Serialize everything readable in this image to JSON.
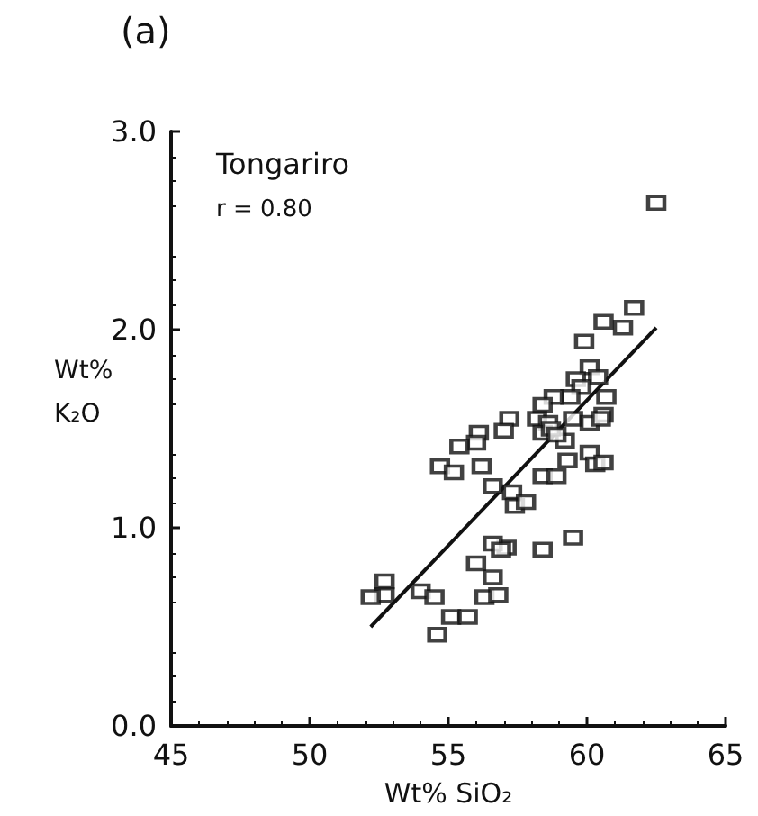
{
  "chart_data": {
    "type": "scatter",
    "title": "(a)",
    "xlabel": "Wt% SiO₂",
    "ylabel": "Wt%\nK₂O",
    "annotations": [
      "Tongariro",
      "r = 0.80"
    ],
    "xlim": [
      45,
      65
    ],
    "xticks": [
      45,
      50,
      55,
      60,
      65
    ],
    "ylim": [
      0,
      3
    ],
    "yticks": [
      {
        "value": 0,
        "label": "0.0"
      },
      {
        "value": 1,
        "label": "1.0"
      },
      {
        "value": 2,
        "label": "2.0"
      },
      {
        "value": 3,
        "label": "3.0"
      }
    ],
    "grid": false,
    "marker": "square",
    "series": [
      {
        "color": "#111111",
        "x": [
          62.5,
          61.7,
          60.6,
          61.3,
          59.9,
          60.1,
          60.4,
          59.6,
          59.8,
          59.4,
          60.7,
          58.8,
          58.4,
          57.2,
          57.0,
          58.2,
          58.6,
          58.4,
          59.2,
          59.5,
          60.1,
          60.6,
          60.5,
          56.1,
          56.0,
          55.4,
          54.7,
          55.2,
          56.2,
          59.3,
          60.1,
          60.3,
          60.6,
          58.4,
          58.9,
          56.6,
          57.3,
          57.4,
          57.8,
          59.5,
          58.4,
          57.1,
          56.6,
          56.9,
          56.0,
          56.6,
          52.7,
          52.7,
          52.2,
          54.0,
          54.5,
          56.3,
          56.8,
          55.1,
          55.7,
          54.6,
          58.7,
          58.9
        ],
        "values": [
          2.64,
          2.11,
          2.04,
          2.01,
          1.94,
          1.81,
          1.76,
          1.75,
          1.71,
          1.66,
          1.66,
          1.66,
          1.62,
          1.55,
          1.49,
          1.55,
          1.53,
          1.48,
          1.44,
          1.55,
          1.53,
          1.57,
          1.55,
          1.48,
          1.43,
          1.41,
          1.31,
          1.28,
          1.31,
          1.34,
          1.38,
          1.32,
          1.33,
          1.26,
          1.26,
          1.21,
          1.18,
          1.11,
          1.13,
          0.95,
          0.89,
          0.9,
          0.92,
          0.89,
          0.82,
          0.75,
          0.73,
          0.66,
          0.65,
          0.68,
          0.65,
          0.65,
          0.66,
          0.55,
          0.55,
          0.46,
          1.5,
          1.47
        ]
      },
      {
        "type": "line",
        "color": "#111111",
        "marker": "none",
        "line_style": "solid",
        "x": [
          52.2,
          62.5
        ],
        "values": [
          0.5,
          2.01
        ]
      }
    ]
  }
}
